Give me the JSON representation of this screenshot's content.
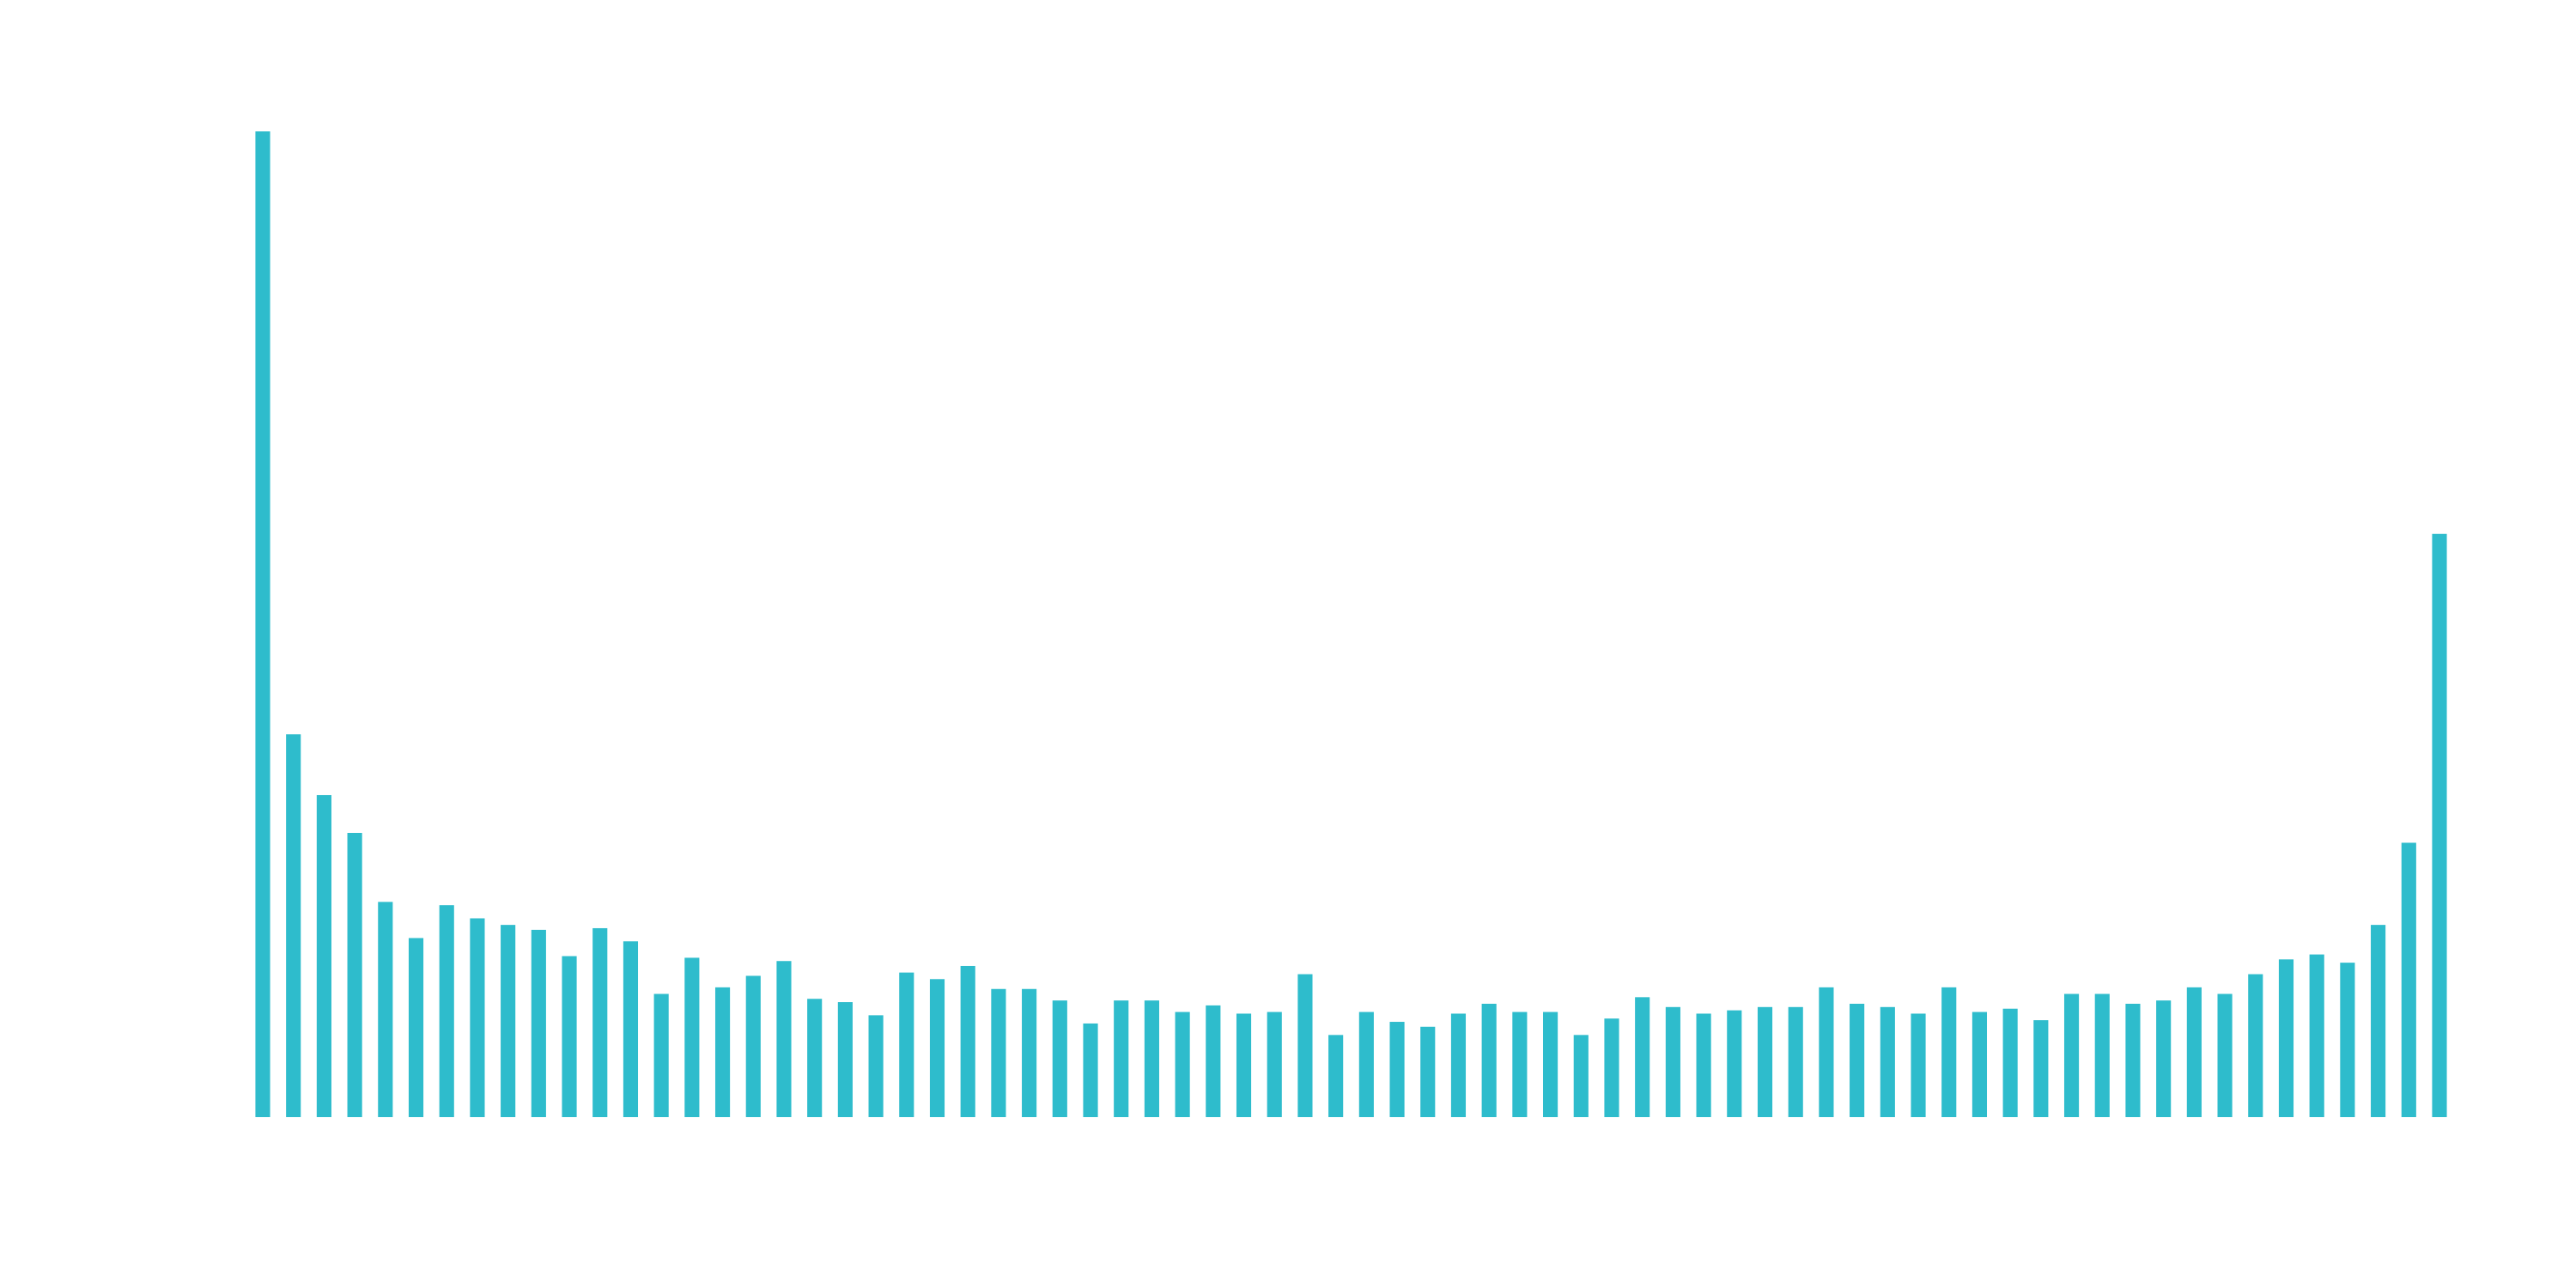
{
  "chart_data": {
    "type": "bar",
    "categories": [
      null,
      null,
      null,
      null,
      null,
      null,
      null,
      null,
      null,
      null,
      null,
      null,
      null,
      null,
      null,
      null,
      null,
      null,
      null,
      null,
      null,
      null,
      null,
      null,
      null,
      null,
      null,
      null,
      null,
      null,
      null,
      null,
      null,
      null,
      null,
      null,
      null,
      null,
      null,
      null,
      null,
      null,
      null,
      null,
      null,
      null,
      null,
      null,
      null,
      null,
      null,
      null,
      null,
      null,
      null,
      null,
      null,
      null,
      null,
      null,
      null,
      null,
      null,
      null,
      null,
      null,
      null,
      null,
      null,
      null,
      null,
      null
    ],
    "values": [
      600,
      233,
      196,
      173,
      131,
      109,
      129,
      121,
      117,
      114,
      98,
      115,
      107,
      75,
      97,
      79,
      86,
      95,
      72,
      70,
      62,
      88,
      84,
      92,
      78,
      78,
      71,
      57,
      71,
      71,
      64,
      68,
      63,
      64,
      87,
      50,
      64,
      58,
      55,
      63,
      69,
      64,
      64,
      50,
      60,
      73,
      67,
      63,
      65,
      67,
      67,
      79,
      69,
      67,
      63,
      79,
      64,
      66,
      59,
      75,
      75,
      69,
      71,
      79,
      75,
      87,
      96,
      99,
      94,
      117,
      167,
      355
    ],
    "color": "#2ebccc",
    "ylim": [
      0,
      600
    ]
  }
}
